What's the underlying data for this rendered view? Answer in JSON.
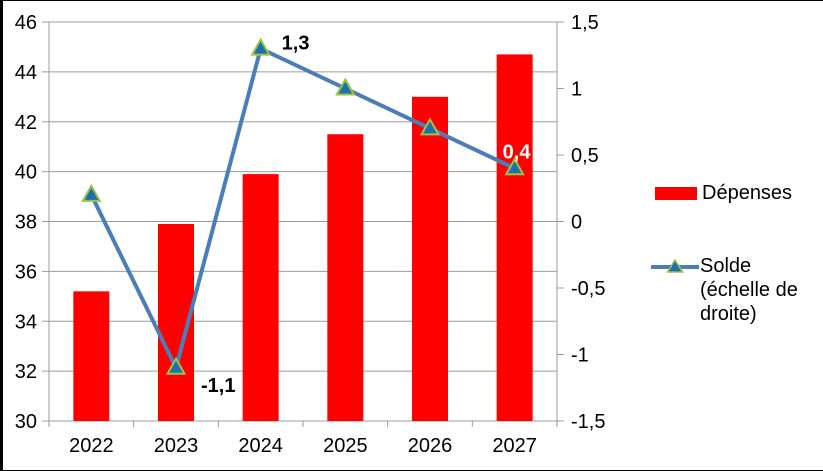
{
  "chart_data": {
    "type": "combo",
    "categories": [
      "2022",
      "2023",
      "2024",
      "2025",
      "2026",
      "2027"
    ],
    "series": [
      {
        "name": "Dépenses",
        "type": "bar",
        "axis": "left",
        "color": "#FF0000",
        "values": [
          35.2,
          37.9,
          39.9,
          41.5,
          43.0,
          44.7
        ]
      },
      {
        "name": "Solde (échelle de droite)",
        "type": "line",
        "axis": "right",
        "color": "#4A7EBB",
        "marker": {
          "shape": "triangle",
          "fill": "#1F6FB5",
          "stroke": "#9DC33B"
        },
        "values": [
          0.2,
          -1.1,
          1.3,
          1.0,
          0.7,
          0.4
        ],
        "data_labels": [
          {
            "index": 1,
            "text": "-1,1",
            "color": "#000000",
            "dx": 25,
            "dy": 24
          },
          {
            "index": 2,
            "text": "1,3",
            "color": "#000000",
            "dx": 21,
            "dy": 1
          },
          {
            "index": 5,
            "text": "0,4",
            "color": "#FFFFFF",
            "dx": -12,
            "dy": -10
          }
        ]
      }
    ],
    "left_axis": {
      "min": 30,
      "max": 46,
      "step": 2,
      "tick_labels": [
        "46",
        "44",
        "42",
        "40",
        "38",
        "36",
        "34",
        "32",
        "30"
      ]
    },
    "right_axis": {
      "min": -1.5,
      "max": 1.5,
      "step": 0.5,
      "tick_labels": [
        "1,5",
        "1",
        "0,5",
        "0",
        "-0,5",
        "-1",
        "-1,5"
      ]
    },
    "grid": true,
    "grid_color": "#9C9C9C",
    "legend_position": "right",
    "legend": [
      {
        "label_lines": [
          "Dépenses"
        ]
      },
      {
        "label_lines": [
          "Solde",
          "(échelle de",
          "droite)"
        ]
      }
    ]
  }
}
